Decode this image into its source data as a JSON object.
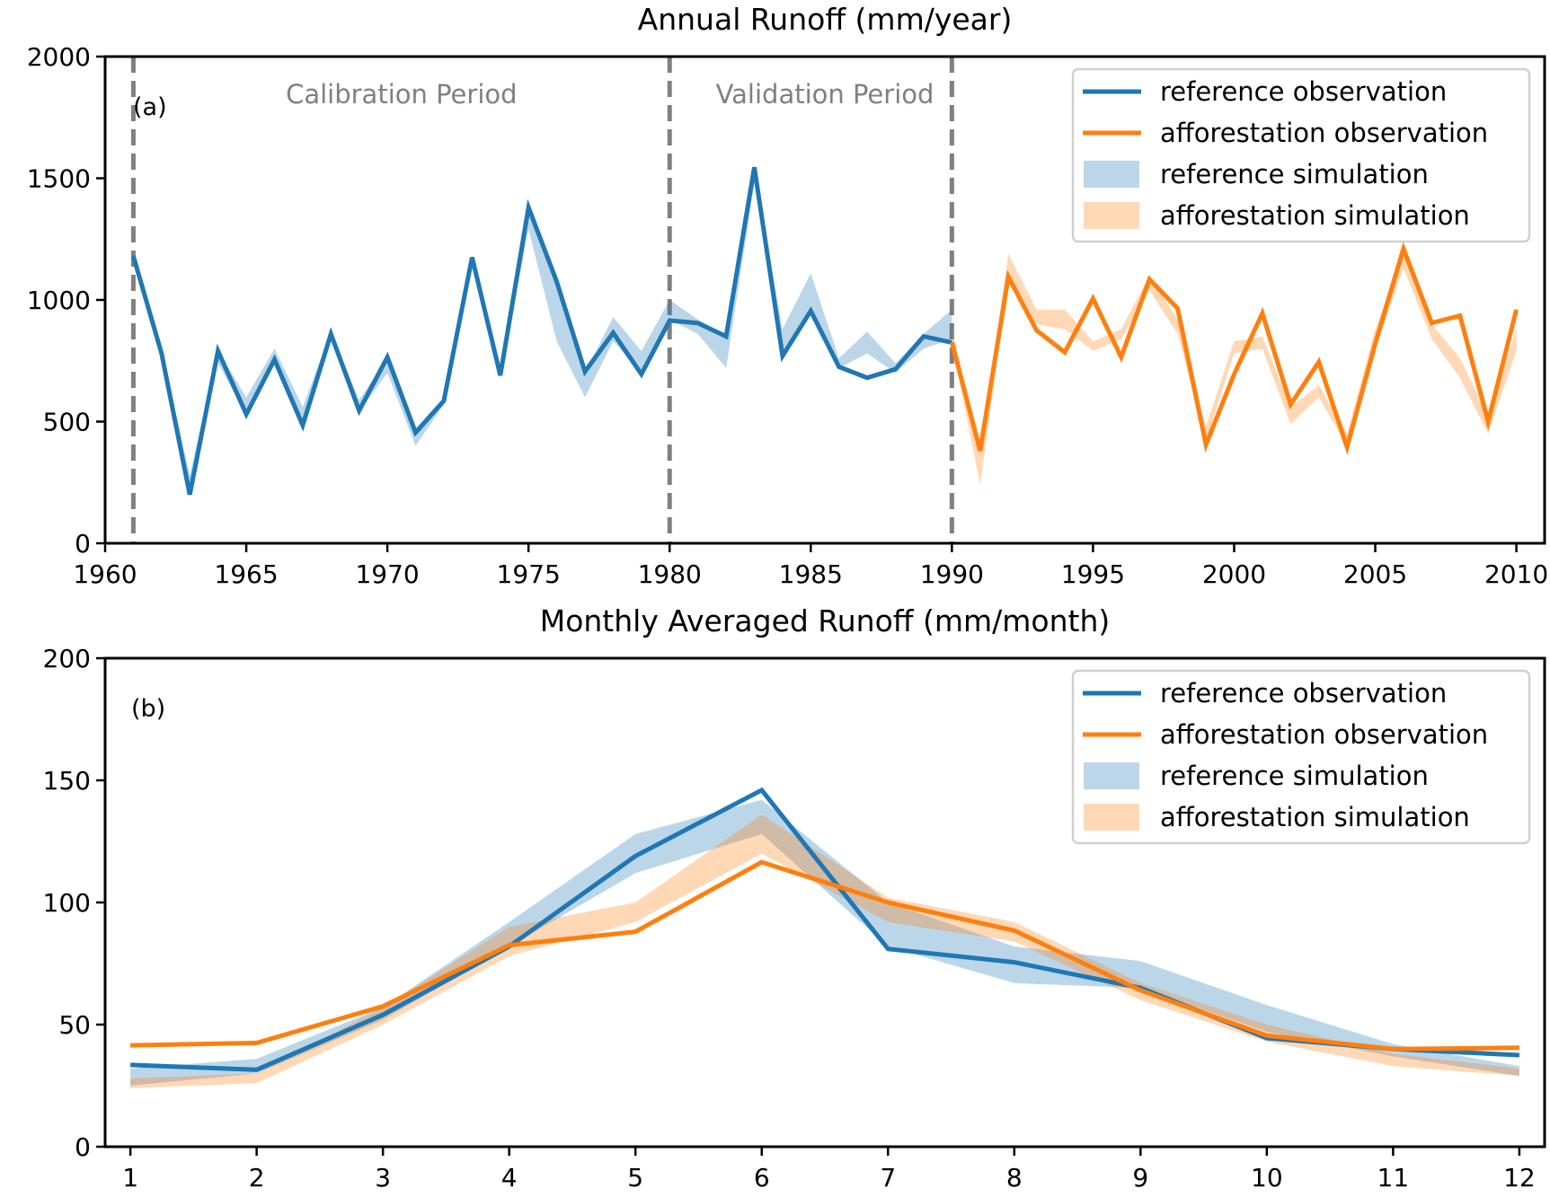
{
  "chart_data": [
    {
      "type": "line",
      "panel_label": "(a)",
      "title": "Annual Runoff (mm/year)",
      "xlabel": "",
      "ylabel": "",
      "xlim": [
        1960,
        2011
      ],
      "ylim": [
        0,
        2000
      ],
      "xticks": [
        1960,
        1965,
        1970,
        1975,
        1980,
        1985,
        1990,
        1995,
        2000,
        2005,
        2010
      ],
      "yticks": [
        0,
        500,
        1000,
        1500,
        2000
      ],
      "grid": false,
      "legend_position": "top-right",
      "period_lines": [
        1961,
        1980,
        1990
      ],
      "annotations": [
        {
          "text": "Calibration Period",
          "x": 1970.5
        },
        {
          "text": "Validation Period",
          "x": 1985.5
        }
      ],
      "series": [
        {
          "name": "reference observation",
          "kind": "line",
          "color": "#1f77b4",
          "x": [
            1961,
            1962,
            1963,
            1964,
            1965,
            1966,
            1967,
            1968,
            1969,
            1970,
            1971,
            1972,
            1973,
            1974,
            1975,
            1976,
            1977,
            1978,
            1979,
            1980,
            1981,
            1982,
            1983,
            1984,
            1985,
            1986,
            1987,
            1988,
            1989,
            1990
          ],
          "y": [
            1180,
            780,
            200,
            790,
            530,
            755,
            485,
            860,
            545,
            765,
            455,
            585,
            1175,
            690,
            1380,
            1075,
            705,
            865,
            695,
            915,
            905,
            850,
            1545,
            770,
            955,
            725,
            680,
            715,
            850,
            825
          ]
        },
        {
          "name": "afforestation observation",
          "kind": "line",
          "color": "#ff7f0e",
          "x": [
            1990,
            1991,
            1992,
            1993,
            1994,
            1995,
            1996,
            1997,
            1998,
            1999,
            2000,
            2001,
            2002,
            2003,
            2004,
            2005,
            2006,
            2007,
            2008,
            2009,
            2010
          ],
          "y": [
            825,
            380,
            1095,
            875,
            785,
            1005,
            765,
            1085,
            965,
            405,
            695,
            945,
            570,
            745,
            395,
            820,
            1210,
            905,
            935,
            500,
            960
          ]
        },
        {
          "name": "reference simulation",
          "kind": "band",
          "color": "#1f77b4",
          "x": [
            1961,
            1962,
            1963,
            1964,
            1965,
            1966,
            1967,
            1968,
            1969,
            1970,
            1971,
            1972,
            1973,
            1974,
            1975,
            1976,
            1977,
            1978,
            1979,
            1980,
            1981,
            1982,
            1983,
            1984,
            1985,
            1986,
            1987,
            1988,
            1989,
            1990
          ],
          "lower": [
            1150,
            760,
            210,
            740,
            530,
            740,
            490,
            830,
            540,
            700,
            400,
            570,
            1140,
            680,
            1290,
            830,
            600,
            830,
            700,
            920,
            860,
            720,
            1480,
            780,
            950,
            720,
            780,
            700,
            800,
            840
          ],
          "upper": [
            1190,
            800,
            280,
            790,
            600,
            800,
            560,
            870,
            590,
            760,
            470,
            600,
            1180,
            720,
            1370,
            1060,
            700,
            930,
            790,
            1000,
            920,
            850,
            1540,
            880,
            1110,
            760,
            870,
            740,
            860,
            960
          ]
        },
        {
          "name": "afforestation simulation",
          "kind": "band",
          "color": "#ff7f0e",
          "x": [
            1990,
            1991,
            1992,
            1993,
            1994,
            1995,
            1996,
            1997,
            1998,
            1999,
            2000,
            2001,
            2002,
            2003,
            2004,
            2005,
            2006,
            2007,
            2008,
            2009,
            2010
          ],
          "lower": [
            820,
            240,
            1080,
            900,
            880,
            790,
            840,
            1040,
            860,
            420,
            780,
            800,
            490,
            600,
            400,
            800,
            1130,
            840,
            680,
            450,
            790
          ],
          "upper": [
            880,
            380,
            1190,
            960,
            960,
            830,
            880,
            1100,
            920,
            480,
            830,
            850,
            560,
            650,
            450,
            880,
            1190,
            900,
            760,
            520,
            880
          ]
        }
      ]
    },
    {
      "type": "line",
      "panel_label": "(b)",
      "title": "Monthly Averaged Runoff (mm/month)",
      "xlabel": "",
      "ylabel": "",
      "xlim": [
        0.8,
        12.2
      ],
      "ylim": [
        0,
        200
      ],
      "xticks": [
        1,
        2,
        3,
        4,
        5,
        6,
        7,
        8,
        9,
        10,
        11,
        12
      ],
      "yticks": [
        0,
        50,
        100,
        150,
        200
      ],
      "grid": false,
      "legend_position": "top-right",
      "series": [
        {
          "name": "reference observation",
          "kind": "line",
          "color": "#1f77b4",
          "x": [
            1,
            2,
            3,
            4,
            5,
            6,
            7,
            8,
            9,
            10,
            11,
            12
          ],
          "y": [
            33.5,
            31.5,
            54,
            82,
            119,
            146,
            81,
            75.5,
            65,
            44.5,
            40,
            37.5
          ]
        },
        {
          "name": "afforestation observation",
          "kind": "line",
          "color": "#ff7f0e",
          "x": [
            1,
            2,
            3,
            4,
            5,
            6,
            7,
            8,
            9,
            10,
            11,
            12
          ],
          "y": [
            41.5,
            42.5,
            57.5,
            82.5,
            88,
            116.5,
            100,
            88.5,
            64,
            45.5,
            40,
            40.5
          ]
        },
        {
          "name": "reference simulation",
          "kind": "band",
          "color": "#1f77b4",
          "x": [
            1,
            2,
            3,
            4,
            5,
            6,
            7,
            8,
            9,
            10,
            11,
            12
          ],
          "lower": [
            25,
            30,
            52,
            82,
            112,
            128,
            82,
            67,
            65,
            47,
            37,
            29
          ],
          "upper": [
            32,
            36,
            57,
            92,
            128,
            142,
            100,
            82,
            76,
            58,
            42,
            33
          ]
        },
        {
          "name": "afforestation simulation",
          "kind": "band",
          "color": "#ff7f0e",
          "x": [
            1,
            2,
            3,
            4,
            5,
            6,
            7,
            8,
            9,
            10,
            11,
            12
          ],
          "lower": [
            24,
            26,
            50,
            78,
            92,
            120,
            92,
            84,
            60,
            43,
            33,
            29
          ],
          "upper": [
            28,
            30,
            57,
            90,
            100,
            136,
            102,
            92,
            67,
            50,
            38,
            32
          ]
        }
      ]
    }
  ]
}
